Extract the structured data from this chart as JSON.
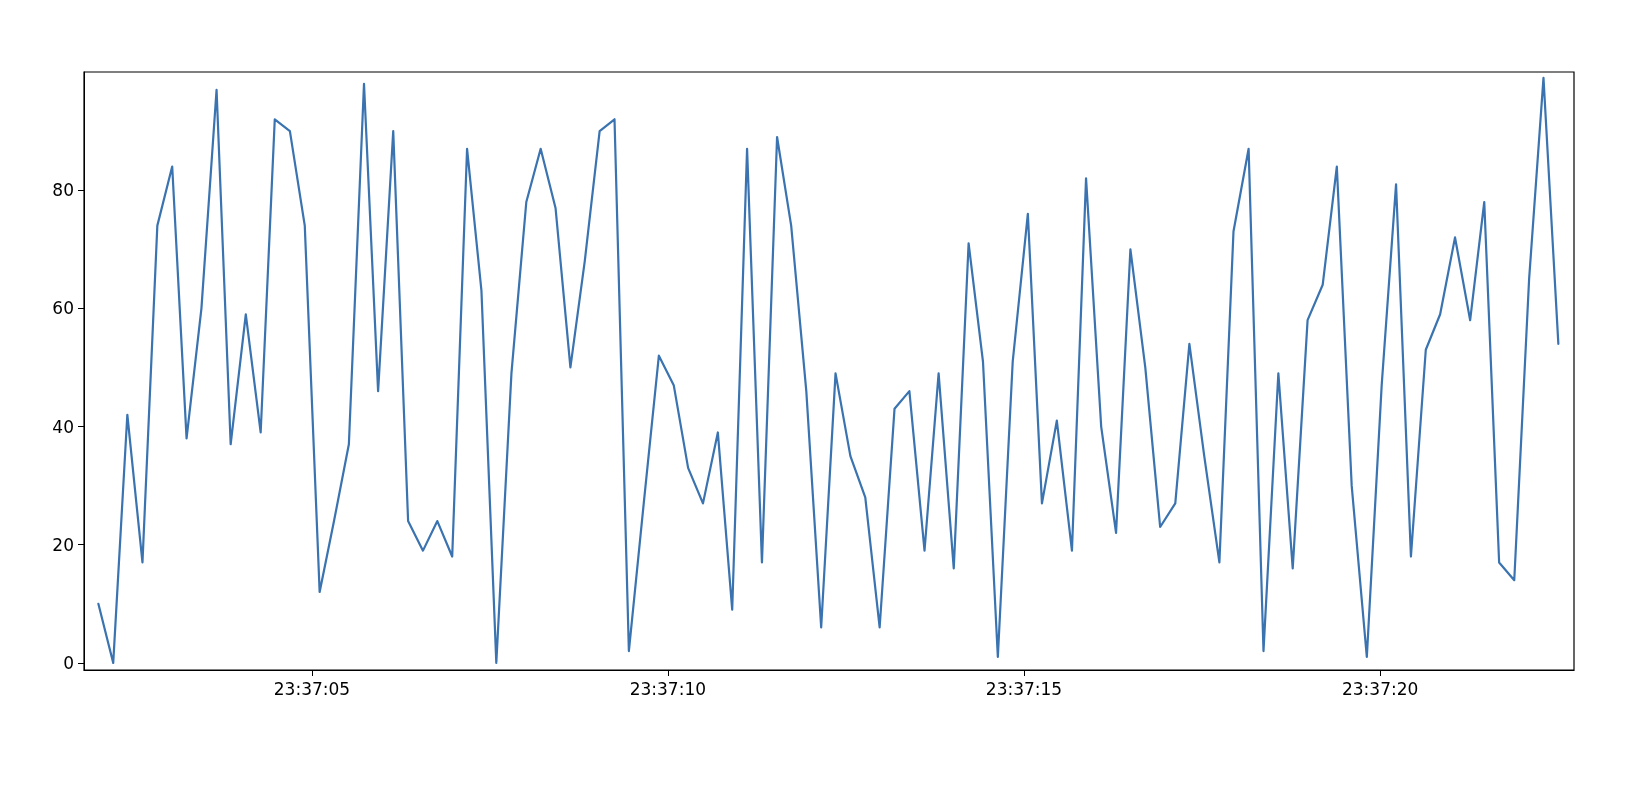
{
  "chart_data": {
    "type": "line",
    "color": "#3a73b0",
    "x": [
      23.617223,
      23.617281,
      23.617336,
      23.617395,
      23.617453,
      23.617511,
      23.617567,
      23.617625,
      23.617684,
      23.617739,
      23.617798,
      23.617856,
      23.617911,
      23.61797,
      23.618028,
      23.618086,
      23.618142,
      23.6182,
      23.618259,
      23.618314,
      23.618373,
      23.618431,
      23.618489,
      23.618545,
      23.618603,
      23.618661,
      23.618717,
      23.618775,
      23.618834,
      23.618892,
      23.618948,
      23.619006,
      23.619064,
      23.61912,
      23.619178,
      23.619236,
      23.619292,
      23.61935,
      23.619409,
      23.619467,
      23.619523,
      23.619581,
      23.619639,
      23.619695,
      23.619753,
      23.619811,
      23.61987,
      23.619925,
      23.619984,
      23.620042,
      23.620098,
      23.620156,
      23.620214,
      23.62027,
      23.620328,
      23.620386,
      23.620445,
      23.6205,
      23.620559,
      23.620617,
      23.620673,
      23.620731,
      23.620789,
      23.620848,
      23.620903,
      23.620961,
      23.62102,
      23.621075,
      23.621134,
      23.621192,
      23.621248,
      23.621306,
      23.621364,
      23.621423,
      23.621478,
      23.621536,
      23.621595,
      23.62165,
      23.621709,
      23.621767,
      23.621825,
      23.621881,
      23.621939,
      23.621998,
      23.622053,
      23.622111,
      23.62217,
      23.622228,
      23.622284,
      23.622342,
      23.6224,
      23.622456,
      23.622514,
      23.622573,
      23.622628,
      23.622686,
      23.622745,
      23.622803,
      23.622859,
      23.622917
    ],
    "values": [
      10,
      0,
      42,
      17,
      74,
      84,
      38,
      60,
      97,
      37,
      59,
      39,
      92,
      90,
      74,
      12,
      24,
      37,
      98,
      46,
      90,
      24,
      19,
      24,
      18,
      87,
      63,
      0,
      49,
      78,
      87,
      77,
      50,
      68,
      90,
      92,
      2,
      27,
      52,
      47,
      33,
      27,
      39,
      9,
      87,
      17,
      89,
      74,
      46,
      6,
      49,
      35,
      28,
      6,
      43,
      46,
      19,
      49,
      16,
      71,
      51,
      1,
      51,
      76,
      27,
      41,
      19,
      82,
      40,
      22,
      70,
      50,
      23,
      27,
      54,
      35,
      17,
      73,
      87,
      2,
      49,
      16,
      58,
      64,
      84,
      30,
      1,
      47,
      81,
      18,
      53,
      59,
      72,
      58,
      78,
      17,
      14,
      65,
      99,
      54
    ],
    "xlim": [
      23.617167,
      23.622978
    ],
    "xticks": [
      {
        "value": 23.618056,
        "label": "23:37:05"
      },
      {
        "value": 23.619444,
        "label": "23:37:10"
      },
      {
        "value": 23.620833,
        "label": "23:37:15"
      },
      {
        "value": 23.622222,
        "label": "23:37:20"
      }
    ],
    "ylim": [
      -1.2,
      100
    ],
    "yticks": [
      0,
      20,
      40,
      60,
      80
    ],
    "grid": false,
    "marker": "none",
    "line_style": "solid"
  }
}
